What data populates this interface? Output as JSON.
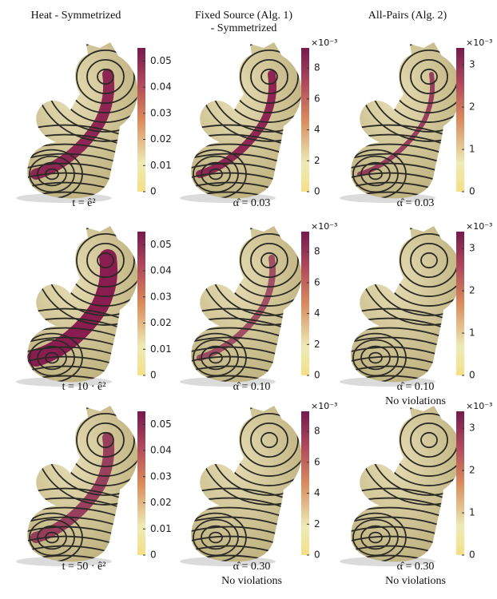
{
  "columns": [
    {
      "title": [
        "Heat - Symmetrized"
      ],
      "colorbar": {
        "ticks": [
          "0",
          "0.01",
          "0.02",
          "0.03",
          "0.04",
          "0.05"
        ]
      }
    },
    {
      "title": [
        "Fixed Source (Alg. 1)",
        "- Symmetrized"
      ],
      "colorbar": {
        "multiplier": "×10⁻³",
        "ticks": [
          "0",
          "2",
          "4",
          "6",
          "8"
        ]
      }
    },
    {
      "title": [
        "All-Pairs (Alg. 2)"
      ],
      "colorbar": {
        "multiplier": "×10⁻³",
        "ticks": [
          "0",
          "1",
          "2",
          "3"
        ]
      }
    }
  ],
  "rows": [
    {
      "captions": [
        [
          "t = ê²"
        ],
        [
          "α̂ = 0.03"
        ],
        [
          "α̂ = 0.03"
        ]
      ]
    },
    {
      "captions": [
        [
          "t = 10 · ê²"
        ],
        [
          "α̂ = 0.10"
        ],
        [
          "α̂ = 0.10",
          "No violations"
        ]
      ]
    },
    {
      "captions": [
        [
          "t = 50 · ê²"
        ],
        [
          "α̂ = 0.30",
          "No violations"
        ],
        [
          "α̂ = 0.30",
          "No violations"
        ]
      ]
    }
  ]
}
